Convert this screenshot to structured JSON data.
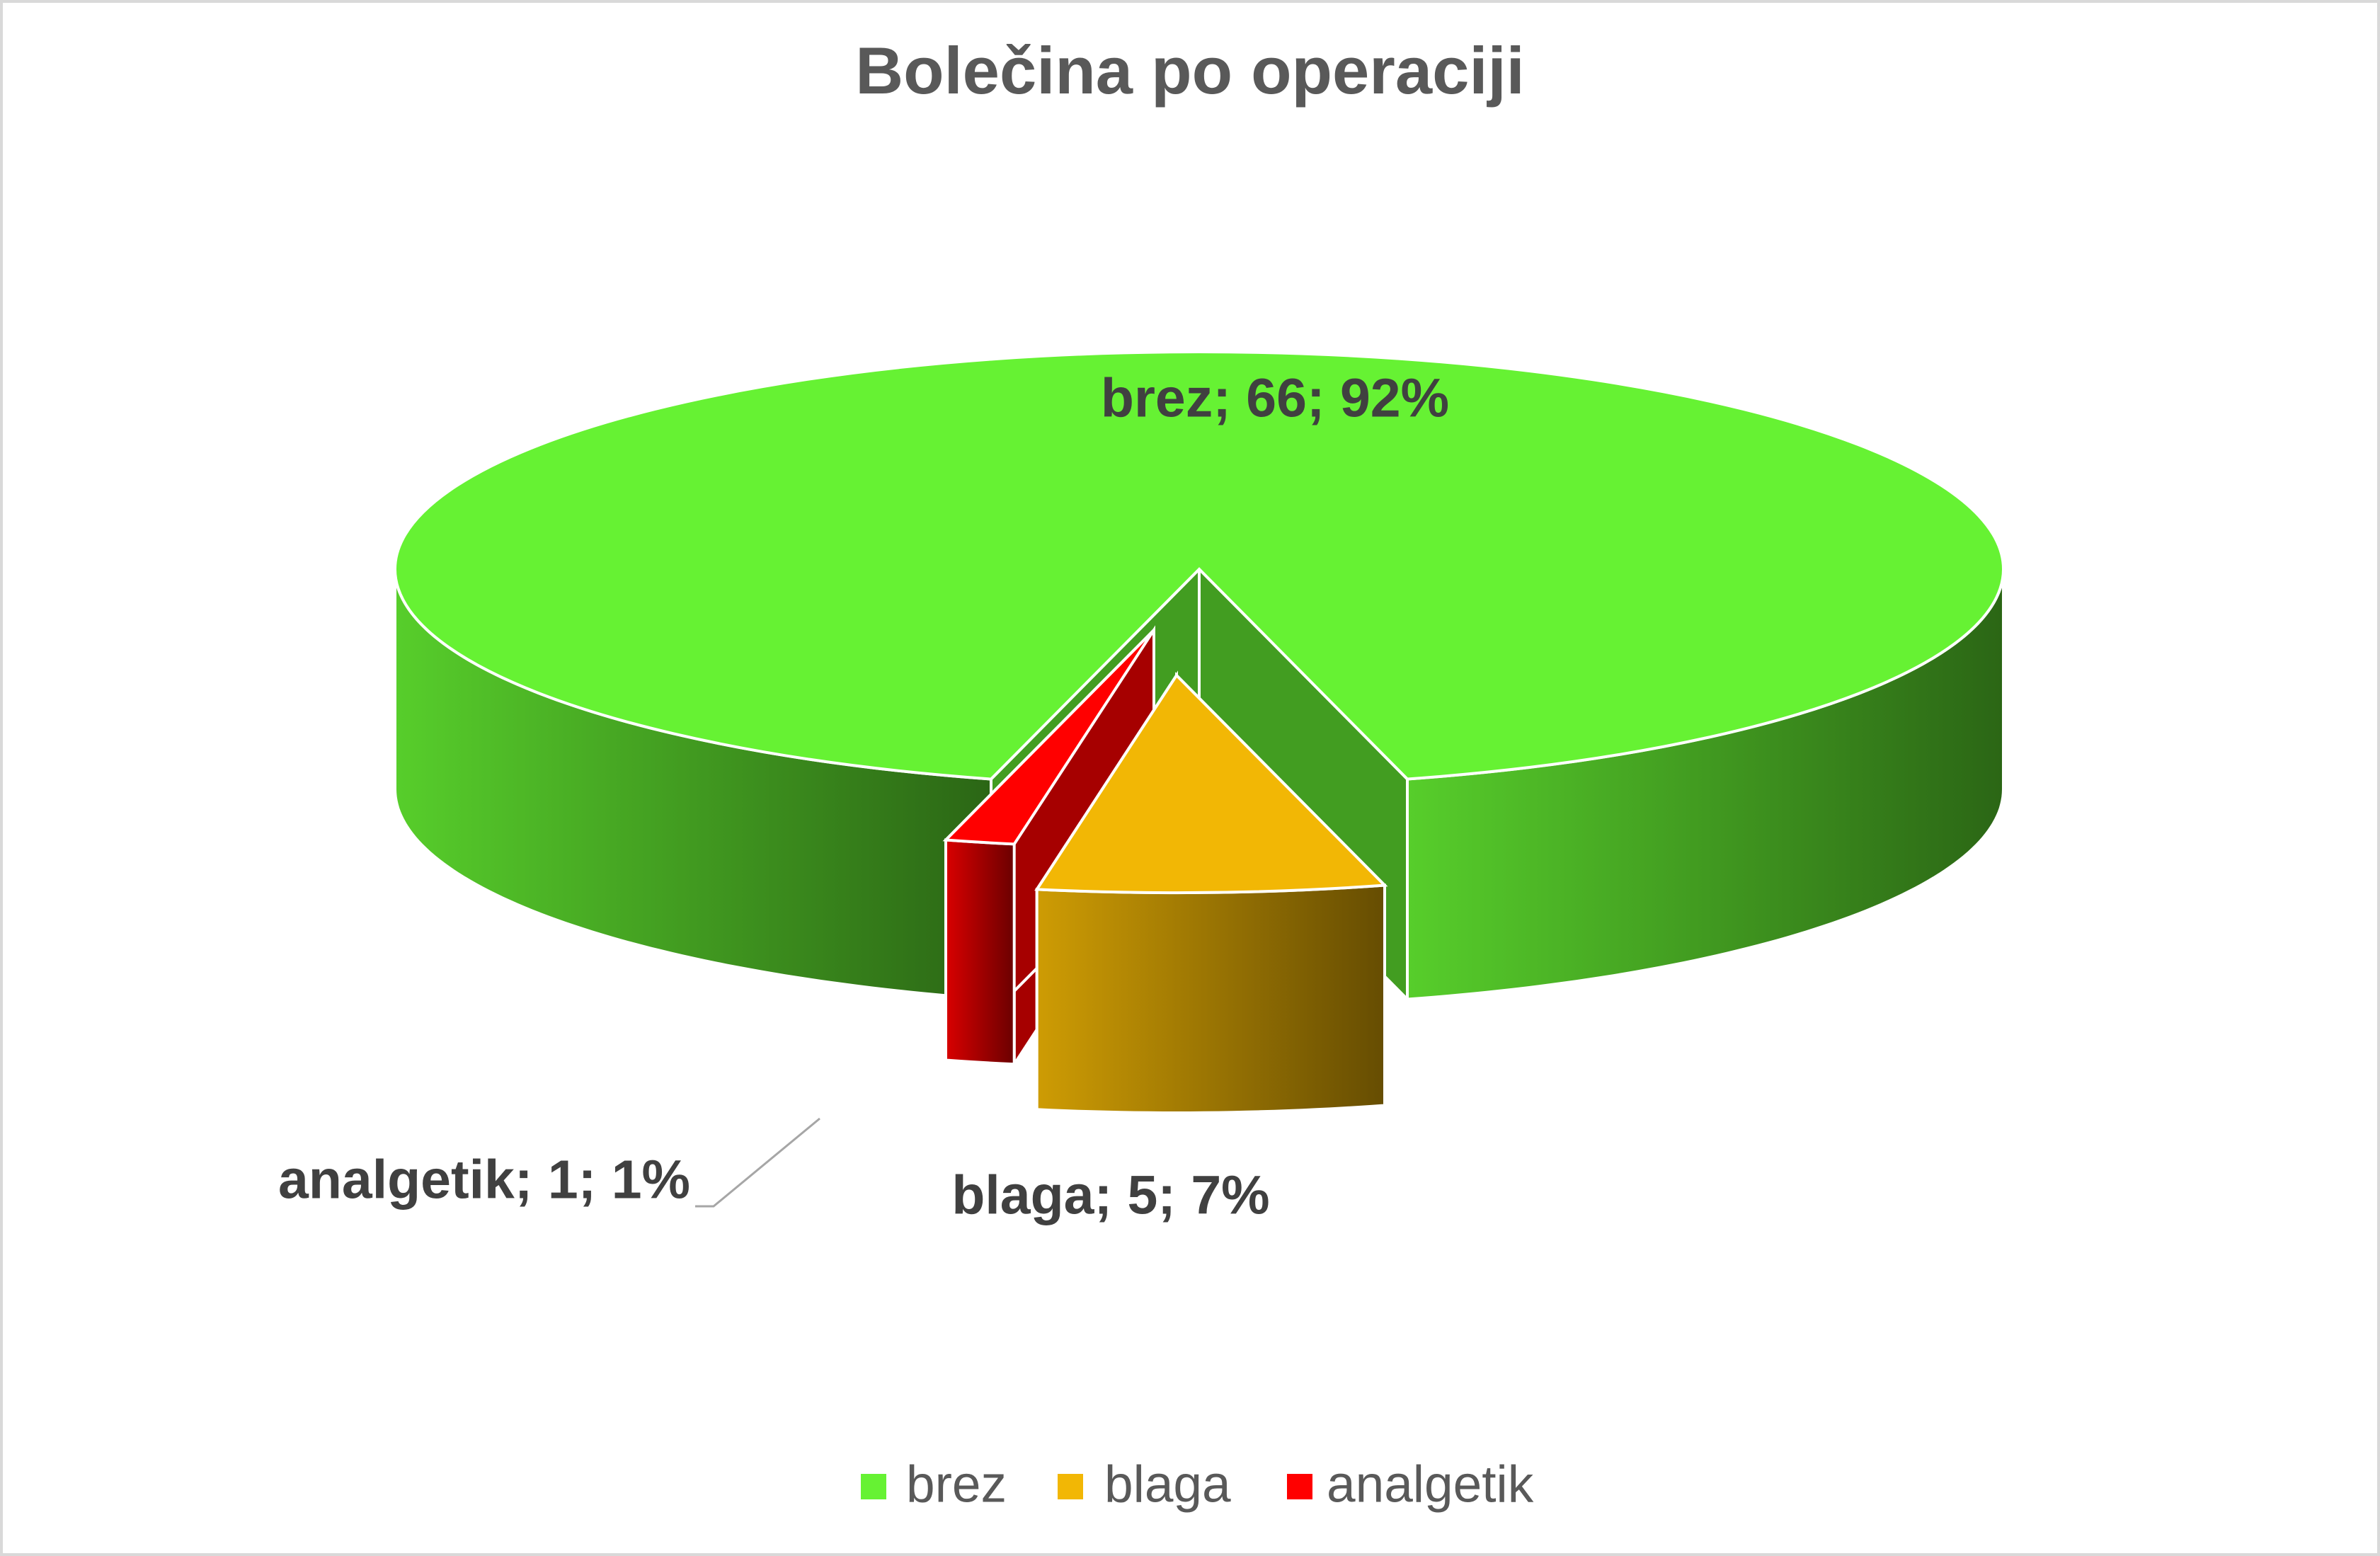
{
  "chart_data": {
    "type": "pie",
    "title": "Bolečina po operaciji",
    "categories": [
      "brez",
      "blaga",
      "analgetik"
    ],
    "values": [
      66,
      5,
      1
    ],
    "value_labels": [
      "brez; 66; 92%",
      "blaga; 5; 7%",
      "analgetik; 1; 1%"
    ],
    "colors": [
      "#66f233",
      "#f2b705",
      "#ff0000"
    ],
    "legend": "bottom"
  }
}
